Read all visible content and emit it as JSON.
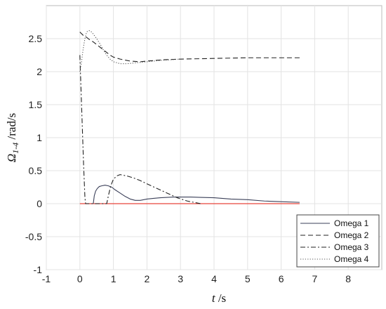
{
  "chart_data": {
    "type": "line",
    "xlabel": {
      "var": "t",
      "unit": " /s"
    },
    "ylabel": {
      "var": "Ω",
      "sub": "1-4",
      "unit": " /rad/s"
    },
    "xlim": [
      -1,
      9
    ],
    "ylim": [
      -1,
      3
    ],
    "xticks": [
      "-1",
      "0",
      "1",
      "2",
      "3",
      "4",
      "5",
      "6",
      "7",
      "8"
    ],
    "yticks": [
      "-1",
      "-0.5",
      "0",
      "0.5",
      "1",
      "1.5",
      "2",
      "2.5"
    ],
    "grid": true,
    "legend": "bottom-right",
    "reference_line": {
      "y": 0,
      "x": [
        0,
        6.55
      ],
      "color": "#e8463c"
    },
    "series": [
      {
        "name": "Omega 1",
        "style": "solid",
        "color": "#3a3f58",
        "x": [
          0.4,
          0.43,
          0.47,
          0.52,
          0.58,
          0.65,
          0.75,
          0.85,
          0.95,
          1.05,
          1.2,
          1.35,
          1.5,
          1.65,
          1.8,
          2.0,
          2.2,
          2.4,
          2.6,
          2.8,
          3.0,
          3.3,
          3.6,
          4.0,
          4.5,
          5.0,
          5.5,
          6.0,
          6.55
        ],
        "y": [
          0,
          0.12,
          0.19,
          0.23,
          0.26,
          0.27,
          0.28,
          0.27,
          0.25,
          0.21,
          0.16,
          0.11,
          0.07,
          0.05,
          0.05,
          0.07,
          0.08,
          0.09,
          0.095,
          0.1,
          0.1,
          0.1,
          0.095,
          0.09,
          0.07,
          0.06,
          0.04,
          0.03,
          0.02
        ]
      },
      {
        "name": "Omega 2",
        "style": "dashed",
        "color": "#222222",
        "x": [
          0,
          0.1,
          0.2,
          0.3,
          0.4,
          0.5,
          0.6,
          0.7,
          0.8,
          0.9,
          1.0,
          1.2,
          1.5,
          1.8,
          2.0,
          2.5,
          3.0,
          4.0,
          5.0,
          6.0,
          6.55
        ],
        "y": [
          2.6,
          2.55,
          2.52,
          2.48,
          2.45,
          2.41,
          2.37,
          2.33,
          2.29,
          2.25,
          2.22,
          2.19,
          2.16,
          2.15,
          2.16,
          2.18,
          2.19,
          2.2,
          2.21,
          2.21,
          2.21
        ]
      },
      {
        "name": "Omega 3",
        "style": "dashdot",
        "color": "#222222",
        "x": [
          0.0,
          0.03,
          0.07,
          0.11,
          0.15,
          0.17,
          0.55,
          0.8,
          0.85,
          0.92,
          1.0,
          1.1,
          1.2,
          1.3,
          1.4,
          1.6,
          1.8,
          2.0,
          2.3,
          2.6,
          2.9,
          3.2,
          3.4,
          3.6
        ],
        "y": [
          2.25,
          1.8,
          1.2,
          0.6,
          0.1,
          0.0,
          0.0,
          0.0,
          0.12,
          0.27,
          0.37,
          0.42,
          0.44,
          0.43,
          0.42,
          0.39,
          0.35,
          0.3,
          0.23,
          0.16,
          0.09,
          0.04,
          0.02,
          0.0
        ]
      },
      {
        "name": "Omega 4",
        "style": "dotted",
        "color": "#555555",
        "x": [
          0.0,
          0.05,
          0.1,
          0.15,
          0.2,
          0.25,
          0.3,
          0.35,
          0.4,
          0.5,
          0.6,
          0.7,
          0.8,
          0.9,
          1.0,
          1.2,
          1.4,
          1.6,
          1.8,
          2.0,
          2.4,
          3.0
        ],
        "y": [
          2.0,
          2.15,
          2.35,
          2.5,
          2.6,
          2.62,
          2.62,
          2.6,
          2.57,
          2.5,
          2.42,
          2.33,
          2.25,
          2.19,
          2.15,
          2.12,
          2.12,
          2.13,
          2.14,
          2.15,
          2.17,
          2.19
        ]
      }
    ]
  }
}
